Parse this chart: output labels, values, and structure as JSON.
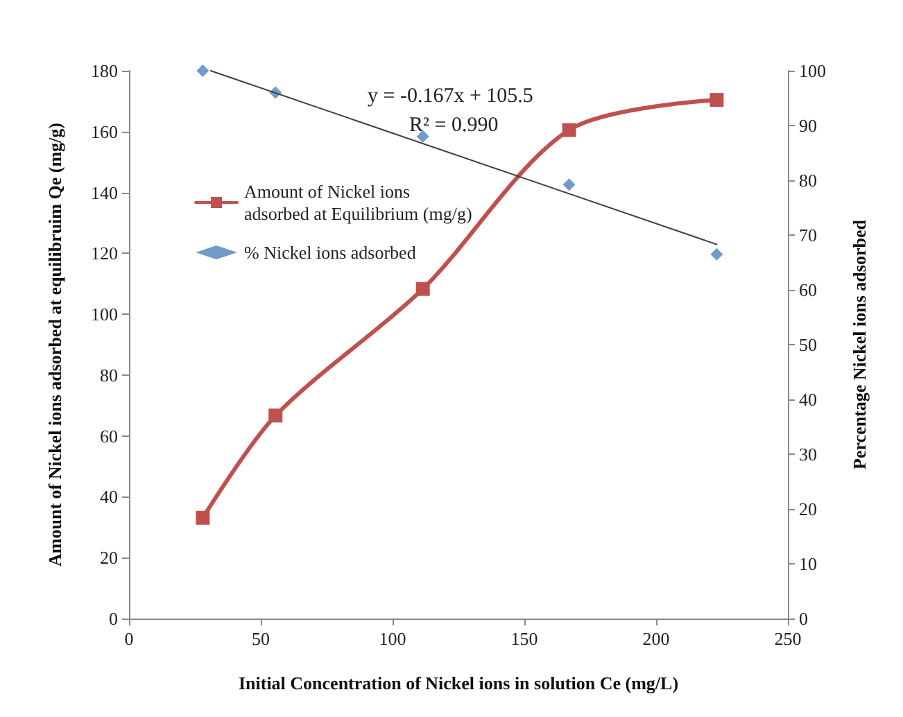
{
  "chart_data": {
    "type": "line",
    "xlabel": "Initial Concentration of Nickel ions in solution Ce (mg/L)",
    "ylabel": "Amount of Nickel ions adsorbed at equilibruim Qe (mg/g)",
    "y2label": "Percentage Nickel ions adsorbed",
    "xlim": [
      0,
      250
    ],
    "xticks": [
      0,
      50,
      100,
      150,
      200,
      250
    ],
    "ylim": [
      0,
      180
    ],
    "yticks": [
      0,
      20,
      40,
      60,
      80,
      100,
      120,
      140,
      160,
      180
    ],
    "y2lim": [
      0,
      100
    ],
    "y2ticks": [
      0,
      10,
      20,
      30,
      40,
      50,
      60,
      70,
      80,
      90,
      100
    ],
    "series": [
      {
        "name": "Amount of Nickel ions adsorbed at Equilibrium (mg/g)",
        "color": "#c0504d",
        "marker": "square",
        "x": [
          28,
          55.6,
          111.5,
          167,
          223
        ],
        "values": [
          33.1,
          66.7,
          108.3,
          160.5,
          170.4
        ]
      },
      {
        "name": "% Nickel ions adsorbed",
        "type": "scatter",
        "axis": "y2",
        "color": "#4f81bd",
        "marker": "diamond",
        "x": [
          28,
          55.6,
          111.5,
          167,
          223
        ],
        "values": [
          100,
          96,
          88,
          79.2,
          66.5
        ]
      },
      {
        "type": "line",
        "axis": "y2",
        "color": "#404040",
        "marker": "none",
        "x": [
          31,
          223
        ],
        "values": [
          100,
          68.3
        ]
      }
    ],
    "annotations": [
      "y = -0.167x + 105.5",
      "R² = 0.990"
    ],
    "legend": "left",
    "grid": false
  }
}
